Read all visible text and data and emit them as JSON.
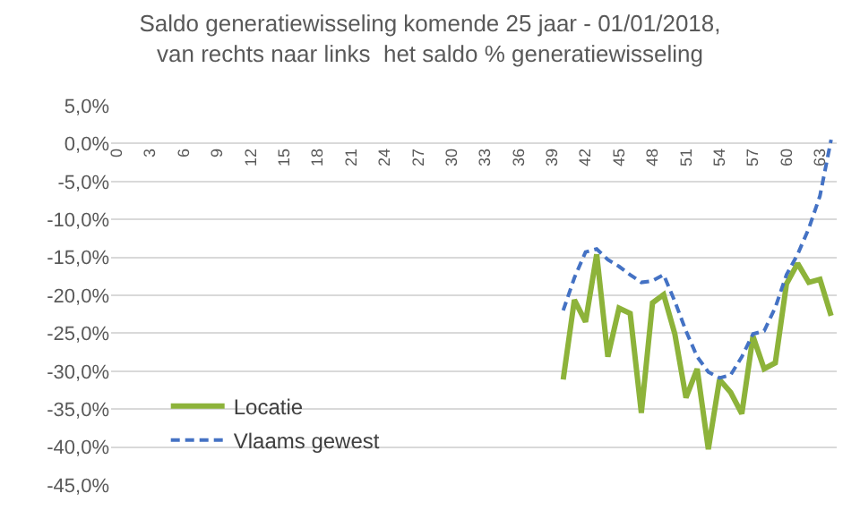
{
  "chart_data": {
    "type": "line",
    "title": "Saldo generatiewisseling komende 25 jaar - 01/01/2018,\nvan rechts naar links  het saldo % generatiewisseling",
    "categories": [
      "0",
      null,
      null,
      "3",
      null,
      null,
      "6",
      null,
      null,
      "9",
      null,
      null,
      "12",
      null,
      null,
      "15",
      null,
      null,
      "18",
      null,
      null,
      "21",
      null,
      null,
      "24",
      null,
      null,
      "27",
      null,
      null,
      "30",
      null,
      null,
      "33",
      null,
      null,
      "36",
      null,
      null,
      "39",
      null,
      null,
      "42",
      null,
      null,
      "45",
      null,
      null,
      "48",
      null,
      null,
      "51",
      null,
      null,
      "54",
      null,
      null,
      "57",
      null,
      null,
      "60",
      null,
      null,
      "63",
      null
    ],
    "series": [
      {
        "name": "Locatie",
        "color": "#8db33a",
        "line_style": "solid",
        "values": [
          null,
          null,
          null,
          null,
          null,
          null,
          null,
          null,
          null,
          null,
          null,
          null,
          null,
          null,
          null,
          null,
          null,
          null,
          null,
          null,
          null,
          null,
          null,
          null,
          null,
          null,
          null,
          null,
          null,
          null,
          null,
          null,
          null,
          null,
          null,
          null,
          null,
          null,
          null,
          null,
          -31.1,
          -20.6,
          -23.5,
          -14.6,
          -28.1,
          -21.7,
          -22.4,
          -35.5,
          -21.0,
          -19.9,
          -25.1,
          -33.5,
          -29.7,
          -40.3,
          -31.1,
          -32.8,
          -35.6,
          -25.4,
          -29.7,
          -28.9,
          -18.5,
          -15.8,
          -18.3,
          -17.9,
          -22.7
        ]
      },
      {
        "name": "Vlaams gewest",
        "color": "#4472c4",
        "line_style": "dashed",
        "values": [
          null,
          null,
          null,
          null,
          null,
          null,
          null,
          null,
          null,
          null,
          null,
          null,
          null,
          null,
          null,
          null,
          null,
          null,
          null,
          null,
          null,
          null,
          null,
          null,
          null,
          null,
          null,
          null,
          null,
          null,
          null,
          null,
          null,
          null,
          null,
          null,
          null,
          null,
          null,
          null,
          -22.0,
          -17.7,
          -14.3,
          -13.9,
          -15.3,
          -16.2,
          -17.3,
          -18.3,
          -18.1,
          -17.3,
          -20.8,
          -24.7,
          -28.1,
          -30.1,
          -30.9,
          -30.5,
          -28.1,
          -25.1,
          -24.7,
          -21.6,
          -17.3,
          -14.6,
          -11.2,
          -6.9,
          0.5
        ]
      }
    ],
    "ylim": [
      -45,
      5
    ],
    "yticks": [
      {
        "value": 5,
        "label": "5,0%"
      },
      {
        "value": 0,
        "label": "0,0%"
      },
      {
        "value": -5,
        "label": "-5,0%"
      },
      {
        "value": -10,
        "label": "-10,0%"
      },
      {
        "value": -15,
        "label": "-15,0%"
      },
      {
        "value": -20,
        "label": "-20,0%"
      },
      {
        "value": -25,
        "label": "-25,0%"
      },
      {
        "value": -30,
        "label": "-30,0%"
      },
      {
        "value": -35,
        "label": "-35,0%"
      },
      {
        "value": -40,
        "label": "-40,0%"
      },
      {
        "value": -45,
        "label": "-45,0%"
      }
    ],
    "grid": "y",
    "legend": "bottom left",
    "marker": "none"
  }
}
